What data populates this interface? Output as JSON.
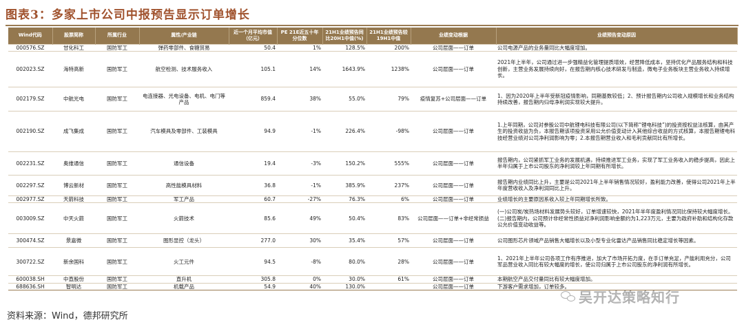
{
  "title": "图表3：多家上市公司中报预告显示订单增长",
  "columns": [
    "Wind代码",
    "股票简称",
    "所属行业",
    "属性/产业链",
    "近一个月平均市值（亿元）",
    "PE 21E近五十年分位数",
    "21H1业绩预告同比20H1中值(%)",
    "21H1业绩预告较19H1中值",
    "业绩变动根据",
    "业绩预告变动原因"
  ],
  "rows": [
    {
      "code": "000576.SZ",
      "name": "甘化科工",
      "industry": "国防军工",
      "chain": "弹药零部件、食糖贸易",
      "cap": "50.4",
      "pe": "1%",
      "yoy20": "128.5%",
      "yoy19": "200%",
      "basis": "公司层面——订单",
      "reason": "公司电源产品的业务量同比大幅度增加。"
    },
    {
      "code": "002023.SZ",
      "name": "海特高新",
      "industry": "国防军工",
      "chain": "航空检测、技术服务收入",
      "cap": "105.1",
      "pe": "14%",
      "yoy20": "1643.9%",
      "yoy19": "1238%",
      "basis": "公司层面——订单",
      "reason": "2021年上半年，公司通过进一步强精益化管理提质增效，经营降低成本，坚持优化产品服务结构和科技创新，主营业务发展持续向好，在报告期内核心技术研发与制造，微电子业务板块主营业务收入持续增长。"
    },
    {
      "code": "002179.SZ",
      "name": "中航光电",
      "industry": "国防军工",
      "chain": "电连接器、光电设备、电机、电门等产品",
      "cap": "859.4",
      "pe": "38%",
      "yoy20": "55.0%",
      "yoy19": "79%",
      "basis": "疫情复苏+公司层面——订单",
      "reason": "1、因为2020年上半年受新冠疫情影响，同期基数较低；2、预计报告期内公司收入规模增长和业务结构持续改善，报告期内归母净利润实现较大提升。"
    },
    {
      "code": "002190.SZ",
      "name": "成飞集成",
      "industry": "国防军工",
      "chain": "汽车模具及零部件、工装模具",
      "cap": "94.9",
      "pe": "-1%",
      "yoy20": "226.4%",
      "yoy19": "-98%",
      "basis": "公司层面——订单",
      "reason": "1.上年同期，公司对参股公司中航锂电科技有限公司(以下简称“锂电科技”)的投资按权益法核算，由其产生的投资收益为负，本报告期该项投资采用公允价值变动计入其他综合收益的方式核算，本报告期锂电科技经营业绩对公司净利润影响为零；2.本报告期营业收入和毛利贡献同比有所增长。"
    },
    {
      "code": "002231.SZ",
      "name": "奥维通信",
      "industry": "国防军工",
      "chain": "通信设备",
      "cap": "19.4",
      "pe": "-3%",
      "yoy20": "150.2%",
      "yoy19": "555%",
      "basis": "公司层面——订单",
      "reason": "报告期内，公司紧抓军工业务的发展机遇，持续推进军工业务，实现了军工业务收入的稳步提高，因此上半年归属于上市公司股东的净利润较上年同期有所增长。"
    },
    {
      "code": "002297.SZ",
      "name": "博云新材",
      "industry": "国防军工",
      "chain": "高性能模具材料",
      "cap": "36.8",
      "pe": "-1%",
      "yoy20": "385.9%",
      "yoy19": "237%",
      "basis": "公司层面——订单",
      "reason": "报告期内业绩同比上升，主要是公司2021年上半年销售情况较好，盈利能力改善，使得公司2021年上半年度营收收入及净利润同比上升。"
    },
    {
      "code": "002977.SZ",
      "name": "天箭科技",
      "industry": "国防军工",
      "chain": "军工产品",
      "cap": "60.7",
      "pe": "-27%",
      "yoy20": "76.3%",
      "yoy19": "6%",
      "basis": "公司层面——订单",
      "reason": "业绩增长的主要原因系收入较上年同期增长所致。"
    },
    {
      "code": "003009.SZ",
      "name": "中天火箭",
      "industry": "国防军工",
      "chain": "火箭技术",
      "cap": "85.6",
      "pe": "49%",
      "yoy20": "50.4%",
      "yoy19": "83%",
      "basis": "公司层面——订单+非经常损益",
      "reason": "(一)公司炭/炭热场材料发展势头较好，订单增速较快，2021年半年度盈利情况同比保持较大幅度增长。(二)报告期内，公司预计非经常性损益对净利润影响金额约为1,223万元，主要为政府补助和结构化存款公允价值变动收益等。"
    },
    {
      "code": "300474.SZ",
      "name": "景嘉微",
      "industry": "国防军工",
      "chain": "图形显控（龙头）",
      "cap": "277.0",
      "pe": "30%",
      "yoy20": "35.4%",
      "yoy19": "57%",
      "basis": "公司层面——订单",
      "reason": "公司图形芯片领域产品销售大幅增长以及小型专业化雷达产品销售同比稳定增长等因素。"
    },
    {
      "code": "300722.SZ",
      "name": "新余国科",
      "industry": "国防军工",
      "chain": "火工元件",
      "cap": "94.5",
      "pe": "-8%",
      "yoy20": "80.0%",
      "yoy19": "28%",
      "basis": "公司层面——订单",
      "reason": "1、2021年上半年公司各项工作有序推进，加大了市场开拓力度，在手订单充足，产能利用充分，公司军品营业收入同比有较大幅度的增长，使公司归属于上市公司股东的净利润有所增长。"
    },
    {
      "code": "600038.SH",
      "name": "中直股份",
      "industry": "国防军工",
      "chain": "直升机",
      "cap": "305.8",
      "pe": "0%",
      "yoy20": "30.0%",
      "yoy19": "61%",
      "basis": "公司层面——订单",
      "reason": "本期航空产品交付量同比有较大幅度增加。"
    },
    {
      "code": "688636.SH",
      "name": "智明达",
      "industry": "国防军工",
      "chain": "机载产品",
      "cap": "54.9",
      "pe": "40%",
      "yoy20": "130.0%",
      "yoy19": "",
      "basis": "公司层面——订单",
      "reason": "下游客户需求增加，订单较多。"
    }
  ],
  "source_note": "资料来源：Wind，德邦研究所",
  "watermark": "吴开达策略知行"
}
